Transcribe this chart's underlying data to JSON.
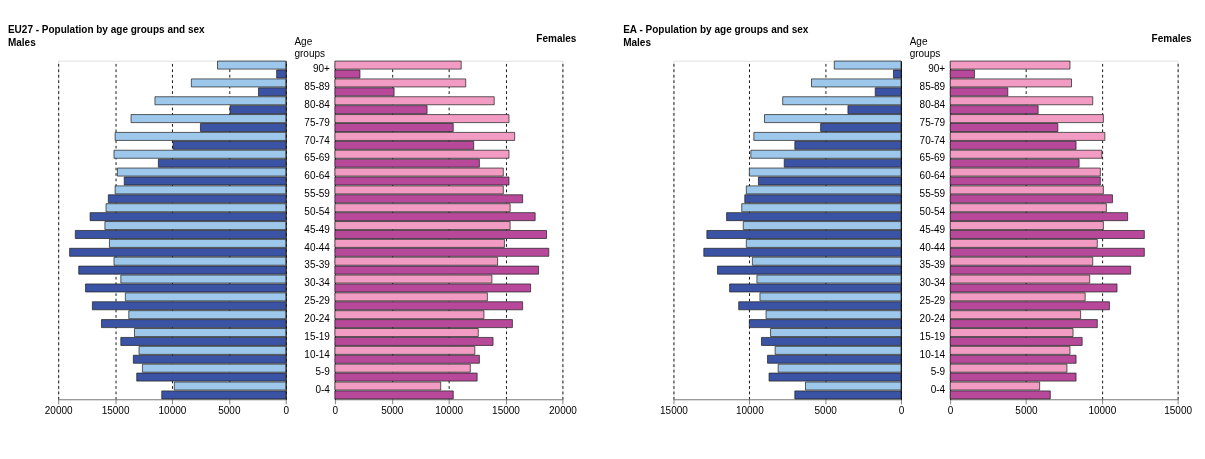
{
  "chart_data": [
    {
      "type": "bar",
      "orientation": "horizontal",
      "title": "EU27 - Population by age groups and sex",
      "subtitle": "Males",
      "tick_labels": "x",
      "grid": "x",
      "categories": [
        null,
        null,
        null,
        null,
        null,
        null,
        null,
        null,
        null,
        null,
        null,
        null,
        null,
        null,
        null,
        null,
        null,
        null,
        null
      ],
      "xlim": [
        20000,
        0
      ],
      "xticks": [
        20000,
        15000,
        10000,
        5000,
        0
      ],
      "series": [
        {
          "color": "#9dc8ec",
          "values": [
            6000,
            8300,
            11500,
            13600,
            15000,
            15100,
            14800,
            15000,
            15800,
            15900,
            15500,
            15100,
            14500,
            14100,
            13800,
            13300,
            12900,
            12600,
            9800
          ]
        },
        {
          "color": "#3a53a4",
          "values": [
            800,
            2400,
            4900,
            7500,
            9900,
            11200,
            14200,
            15600,
            17200,
            18500,
            19000,
            18200,
            17600,
            17000,
            16200,
            14500,
            13400,
            13100,
            10900
          ]
        }
      ]
    },
    {
      "type": "bar",
      "orientation": "horizontal",
      "title": "Females",
      "ylabel": "Age groups",
      "grid": "x",
      "categories": [
        "90+",
        "85-89",
        "80-84",
        "75-79",
        "70-74",
        "65-69",
        "60-64",
        "55-59",
        "50-54",
        "45-49",
        "40-44",
        "35-39",
        "30-34",
        "25-29",
        "20-24",
        "15-19",
        "10-14",
        "5-9",
        "0-4"
      ],
      "xlim": [
        0,
        20000
      ],
      "xticks": [
        0,
        5000,
        10000,
        15000,
        20000
      ],
      "series": [
        {
          "color": "#f29cc4",
          "values": [
            11100,
            11500,
            14000,
            15300,
            15800,
            15300,
            14800,
            14800,
            15400,
            15400,
            14900,
            14300,
            13800,
            13400,
            13100,
            12600,
            12300,
            11900,
            9300
          ]
        },
        {
          "color": "#b8489a",
          "values": [
            2200,
            5200,
            8100,
            10400,
            12200,
            12700,
            15300,
            16500,
            17600,
            18600,
            18800,
            17900,
            17200,
            16500,
            15600,
            13900,
            12700,
            12500,
            10400
          ]
        }
      ]
    },
    {
      "type": "bar",
      "orientation": "horizontal",
      "title": "EA - Population by age groups and sex",
      "subtitle": "Males",
      "tick_labels": "x",
      "grid": "x",
      "categories": [
        null,
        null,
        null,
        null,
        null,
        null,
        null,
        null,
        null,
        null,
        null,
        null,
        null,
        null,
        null,
        null,
        null,
        null,
        null
      ],
      "xlim": [
        15000,
        0
      ],
      "xticks": [
        15000,
        10000,
        5000,
        0
      ],
      "series": [
        {
          "color": "#9dc8ec",
          "values": [
            4400,
            5900,
            7800,
            9000,
            9700,
            9900,
            10000,
            10200,
            10500,
            10400,
            10200,
            9800,
            9500,
            9300,
            8900,
            8600,
            8300,
            8100,
            6300
          ]
        },
        {
          "color": "#3a53a4",
          "values": [
            500,
            1700,
            3500,
            5300,
            7000,
            7700,
            9400,
            10300,
            11500,
            12800,
            13000,
            12100,
            11300,
            10700,
            10000,
            9200,
            8800,
            8700,
            7000
          ]
        }
      ]
    },
    {
      "type": "bar",
      "orientation": "horizontal",
      "title": "Females",
      "ylabel": "Age groups",
      "grid": "x",
      "categories": [
        "90+",
        "85-89",
        "80-84",
        "75-79",
        "70-74",
        "65-69",
        "60-64",
        "55-59",
        "50-54",
        "45-49",
        "40-44",
        "35-39",
        "30-34",
        "25-29",
        "20-24",
        "15-19",
        "10-14",
        "5-9",
        "0-4"
      ],
      "xlim": [
        0,
        15000
      ],
      "xticks": [
        0,
        5000,
        10000,
        15000
      ],
      "series": [
        {
          "color": "#f29cc4",
          "values": [
            7900,
            8000,
            9400,
            10100,
            10200,
            10000,
            9900,
            10100,
            10300,
            10100,
            9700,
            9400,
            9200,
            8900,
            8600,
            8100,
            7900,
            7700,
            5900
          ]
        },
        {
          "color": "#b8489a",
          "values": [
            1600,
            3800,
            5800,
            7100,
            8300,
            8500,
            9900,
            10700,
            11700,
            12800,
            12800,
            11900,
            11000,
            10500,
            9700,
            8700,
            8300,
            8300,
            6600
          ]
        }
      ]
    }
  ]
}
